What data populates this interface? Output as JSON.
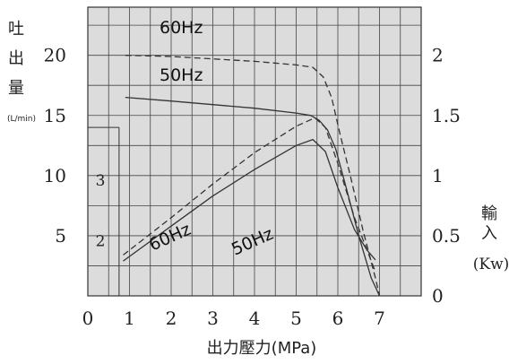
{
  "chart_data": {
    "type": "line",
    "xlabel": "出力壓力(MPa)",
    "ylabel_left_chars": [
      "吐",
      "出",
      "量"
    ],
    "ylabel_left_unit": "(L/min)",
    "ylabel_right_chars": [
      "輸",
      "入"
    ],
    "ylabel_right_unit": "(Kw)",
    "x_ticks": [
      "0",
      "1",
      "2",
      "3",
      "4",
      "5",
      "6",
      "7"
    ],
    "y_left_ticks": [
      "5",
      "10",
      "15",
      "20"
    ],
    "y_right_ticks": [
      "0",
      "0.5",
      "1",
      "1.5",
      "2"
    ],
    "y_inner_ticks": [
      "2",
      "3"
    ],
    "xlim": [
      0,
      8
    ],
    "ylim_left": [
      0,
      24
    ],
    "ylim_right": [
      0,
      2.4
    ],
    "grid": true,
    "series": [
      {
        "name": "60Hz",
        "metric": "flow",
        "axis": "left",
        "style": "dashed",
        "x": [
          0.9,
          2,
          3,
          4,
          5,
          5.4,
          5.65,
          5.85,
          6.05,
          6.3,
          6.6,
          6.9,
          7.0
        ],
        "y": [
          20,
          19.9,
          19.7,
          19.5,
          19.2,
          19.0,
          18.2,
          16.5,
          13.5,
          10.0,
          5.5,
          1.5,
          0
        ]
      },
      {
        "name": "50Hz",
        "metric": "flow",
        "axis": "left",
        "style": "solid",
        "x": [
          0.9,
          2,
          3,
          4,
          5,
          5.35,
          5.55,
          5.75,
          5.95,
          6.2,
          6.5,
          6.8,
          7.0
        ],
        "y": [
          16.5,
          16.2,
          15.9,
          15.6,
          15.2,
          15.0,
          14.6,
          13.8,
          12.2,
          9.0,
          5.0,
          1.5,
          0
        ]
      },
      {
        "name": "60Hz",
        "metric": "power",
        "axis": "right",
        "style": "dashed",
        "x": [
          0.85,
          2,
          3,
          4,
          5,
          5.45,
          5.7,
          6.0,
          6.4,
          6.7,
          6.9
        ],
        "y": [
          0.34,
          0.65,
          0.93,
          1.19,
          1.41,
          1.48,
          1.4,
          1.1,
          0.65,
          0.38,
          0.2
        ]
      },
      {
        "name": "50Hz",
        "metric": "power",
        "axis": "right",
        "style": "solid",
        "x": [
          0.85,
          2,
          3,
          4,
          5,
          5.4,
          5.7,
          6.0,
          6.4,
          6.7,
          6.9
        ],
        "y": [
          0.29,
          0.58,
          0.83,
          1.05,
          1.25,
          1.3,
          1.2,
          0.9,
          0.55,
          0.38,
          0.3
        ]
      }
    ]
  }
}
